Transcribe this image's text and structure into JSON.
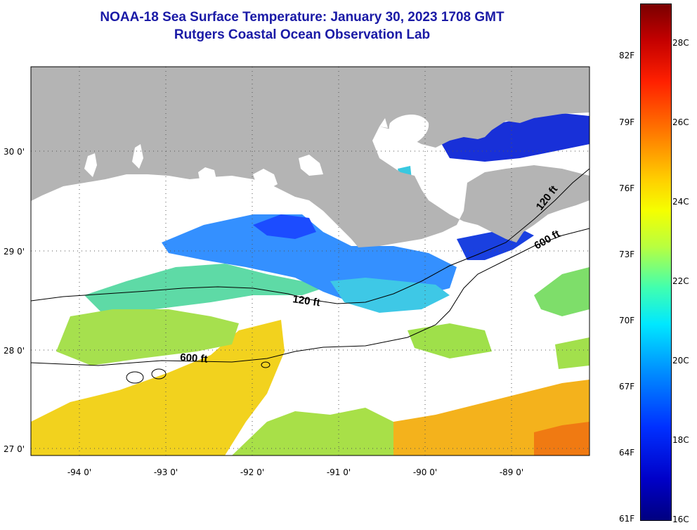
{
  "header": {
    "title": "NOAA-18 Sea Surface Temperature:  January 30, 2023 1708 GMT",
    "subtitle": "Rutgers Coastal Ocean Observation Lab"
  },
  "map": {
    "lat_labels": [
      "30 0'",
      "29 0'",
      "28 0'",
      "27 0'"
    ],
    "lon_labels": [
      "-94 0'",
      "-93 0'",
      "-92 0'",
      "-91 0'",
      "-90 0'",
      "-89 0'"
    ],
    "lat_range": [
      26.9,
      30.85
    ],
    "lon_range": [
      -94.5,
      -88.3
    ],
    "contour_labels": [
      "120 ft",
      "120 ft",
      "600 ft",
      "600 ft"
    ],
    "colors": {
      "land": "#b4b4b4",
      "cloud": "#ffffff",
      "grid": "#555555"
    }
  },
  "colorbar": {
    "fahrenheit_labels": [
      "82F",
      "79F",
      "76F",
      "73F",
      "70F",
      "67F",
      "64F",
      "61F"
    ],
    "celsius_labels": [
      "28C",
      "26C",
      "24C",
      "22C",
      "20C",
      "18C",
      "16C"
    ],
    "range_celsius": [
      16,
      29
    ]
  }
}
